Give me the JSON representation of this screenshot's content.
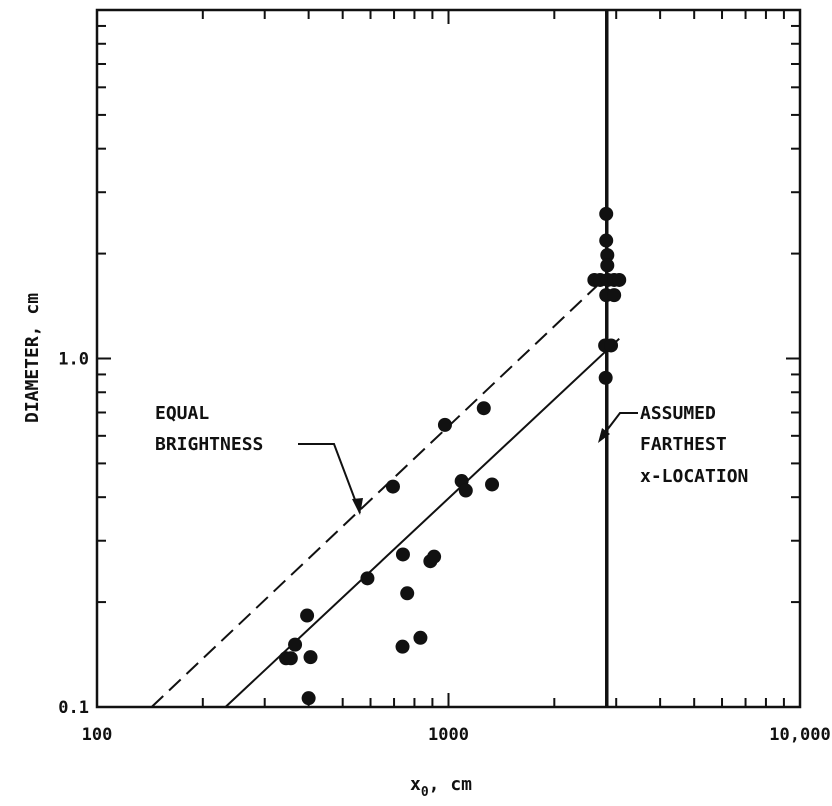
{
  "chart_data": {
    "type": "scatter",
    "title": "",
    "xlabel": "x",
    "xlabel_sub": "0",
    "xlabel_unit": ", cm",
    "ylabel": "DIAMETER, cm",
    "x_scale": "log",
    "y_scale": "log",
    "xlim": [
      100,
      10000
    ],
    "ylim": [
      0.1,
      10
    ],
    "x_tick_labels": [
      {
        "value": 100,
        "label": "100"
      },
      {
        "value": 1000,
        "label": "1000"
      },
      {
        "value": 10000,
        "label": "10,000"
      }
    ],
    "y_tick_labels": [
      {
        "value": 0.1,
        "label": "0.1"
      },
      {
        "value": 1.0,
        "label": "1.0"
      }
    ],
    "grid": false,
    "points": [
      {
        "x": 400,
        "y": 0.106
      },
      {
        "x": 345,
        "y": 0.138
      },
      {
        "x": 356,
        "y": 0.138
      },
      {
        "x": 366,
        "y": 0.151
      },
      {
        "x": 396,
        "y": 0.183
      },
      {
        "x": 405,
        "y": 0.139
      },
      {
        "x": 588,
        "y": 0.234
      },
      {
        "x": 695,
        "y": 0.429
      },
      {
        "x": 742,
        "y": 0.274
      },
      {
        "x": 740,
        "y": 0.149
      },
      {
        "x": 763,
        "y": 0.212
      },
      {
        "x": 832,
        "y": 0.158
      },
      {
        "x": 888,
        "y": 0.262
      },
      {
        "x": 910,
        "y": 0.27
      },
      {
        "x": 977,
        "y": 0.645
      },
      {
        "x": 1090,
        "y": 0.445
      },
      {
        "x": 1120,
        "y": 0.418
      },
      {
        "x": 1260,
        "y": 0.72
      },
      {
        "x": 1330,
        "y": 0.435
      },
      {
        "x": 2810,
        "y": 2.6
      },
      {
        "x": 2810,
        "y": 2.18
      },
      {
        "x": 2830,
        "y": 1.98
      },
      {
        "x": 2830,
        "y": 1.85
      },
      {
        "x": 2600,
        "y": 1.68
      },
      {
        "x": 2700,
        "y": 1.68
      },
      {
        "x": 2840,
        "y": 1.68
      },
      {
        "x": 2960,
        "y": 1.68
      },
      {
        "x": 3060,
        "y": 1.68
      },
      {
        "x": 2810,
        "y": 1.52
      },
      {
        "x": 2960,
        "y": 1.52
      },
      {
        "x": 2790,
        "y": 1.09
      },
      {
        "x": 2900,
        "y": 1.09
      },
      {
        "x": 2800,
        "y": 0.88
      }
    ],
    "lines": [
      {
        "style": "dashed",
        "x": [
          143,
          2720
        ],
        "y": [
          0.1,
          1.66
        ]
      },
      {
        "style": "solid",
        "x": [
          232,
          3060
        ],
        "y": [
          0.1,
          1.14
        ]
      },
      {
        "style": "solid-vertical",
        "x": [
          2820,
          2820
        ],
        "y": [
          0.1,
          10
        ]
      }
    ],
    "annotations": [
      {
        "lines": [
          "EQUAL",
          "BRIGHTNESS"
        ]
      },
      {
        "lines": [
          "ASSUMED",
          "FARTHEST",
          "x-LOCATION"
        ]
      }
    ]
  }
}
